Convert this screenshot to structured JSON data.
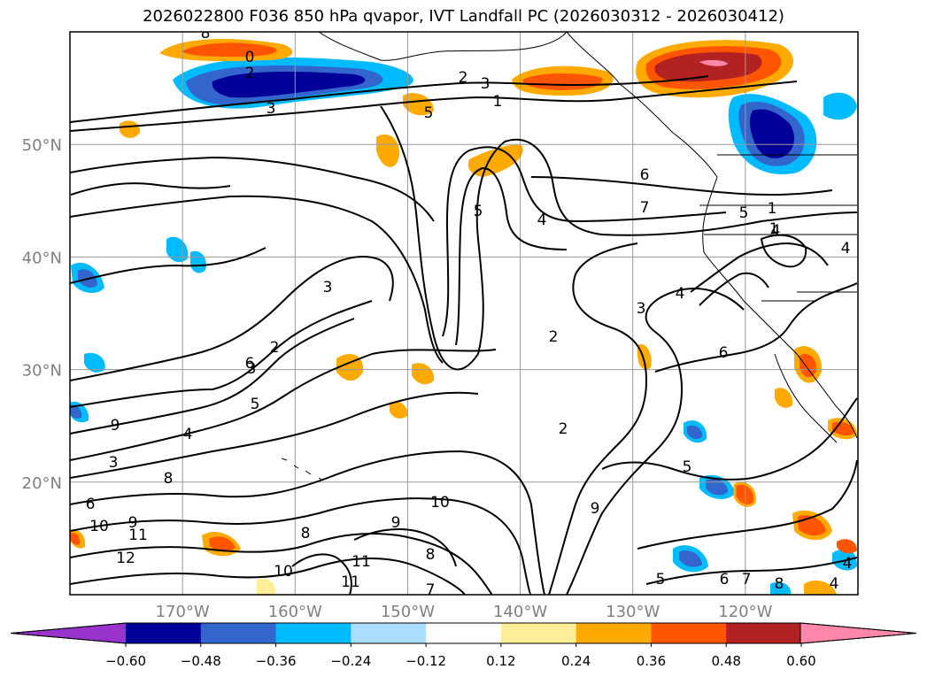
{
  "title": "2026022800 F036 850 hPa qvapor, IVT Landfall PC (2026030312 - 2026030412)",
  "map": {
    "lon_range": [
      -180,
      -110
    ],
    "lat_range": [
      10,
      60
    ],
    "lon_gridlines": [
      -170,
      -160,
      -150,
      -140,
      -130,
      -120
    ],
    "lat_gridlines": [
      20,
      30,
      40,
      50
    ],
    "lon_labels": [
      "170°W",
      "160°W",
      "150°W",
      "140°W",
      "130°W",
      "120°W"
    ],
    "lat_labels": [
      "20°N",
      "30°N",
      "40°N",
      "50°N"
    ],
    "contour_labels": [
      "8",
      "0",
      "2",
      "3",
      "2",
      "3",
      "1",
      "5",
      "5",
      "4",
      "7",
      "6",
      "5",
      "1",
      "4",
      "3",
      "2",
      "3",
      "5",
      "6",
      "2",
      "4",
      "3",
      "2",
      "5",
      "9",
      "8",
      "6",
      "8",
      "10",
      "9",
      "11",
      "12",
      "11",
      "10",
      "9",
      "8",
      "10",
      "7",
      "11",
      "9",
      "6",
      "4",
      "3",
      "4",
      "5",
      "6",
      "7",
      "8",
      "4",
      "1",
      "4"
    ]
  },
  "colorbar": {
    "colors": [
      "#9933cc",
      "#000099",
      "#3366cc",
      "#00bbff",
      "#aaddff",
      "#ffffff",
      "#ffee99",
      "#ffaa00",
      "#ff5500",
      "#b22222",
      "#ff88aa"
    ],
    "tick_labels": [
      "−0.60",
      "−0.48",
      "−0.36",
      "−0.24",
      "−0.12",
      "0.12",
      "0.24",
      "0.36",
      "0.48",
      "0.60"
    ]
  }
}
